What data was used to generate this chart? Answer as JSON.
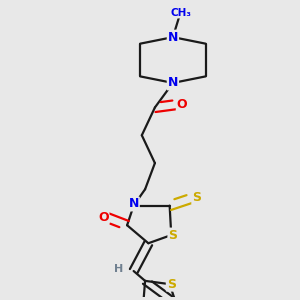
{
  "background_color": "#e8e8e8",
  "bond_color": "#1a1a1a",
  "atom_colors": {
    "N": "#0000ee",
    "O": "#ee0000",
    "S": "#ccaa00",
    "H": "#708090"
  },
  "figsize": [
    3.0,
    3.0
  ],
  "dpi": 100,
  "lw": 1.6
}
